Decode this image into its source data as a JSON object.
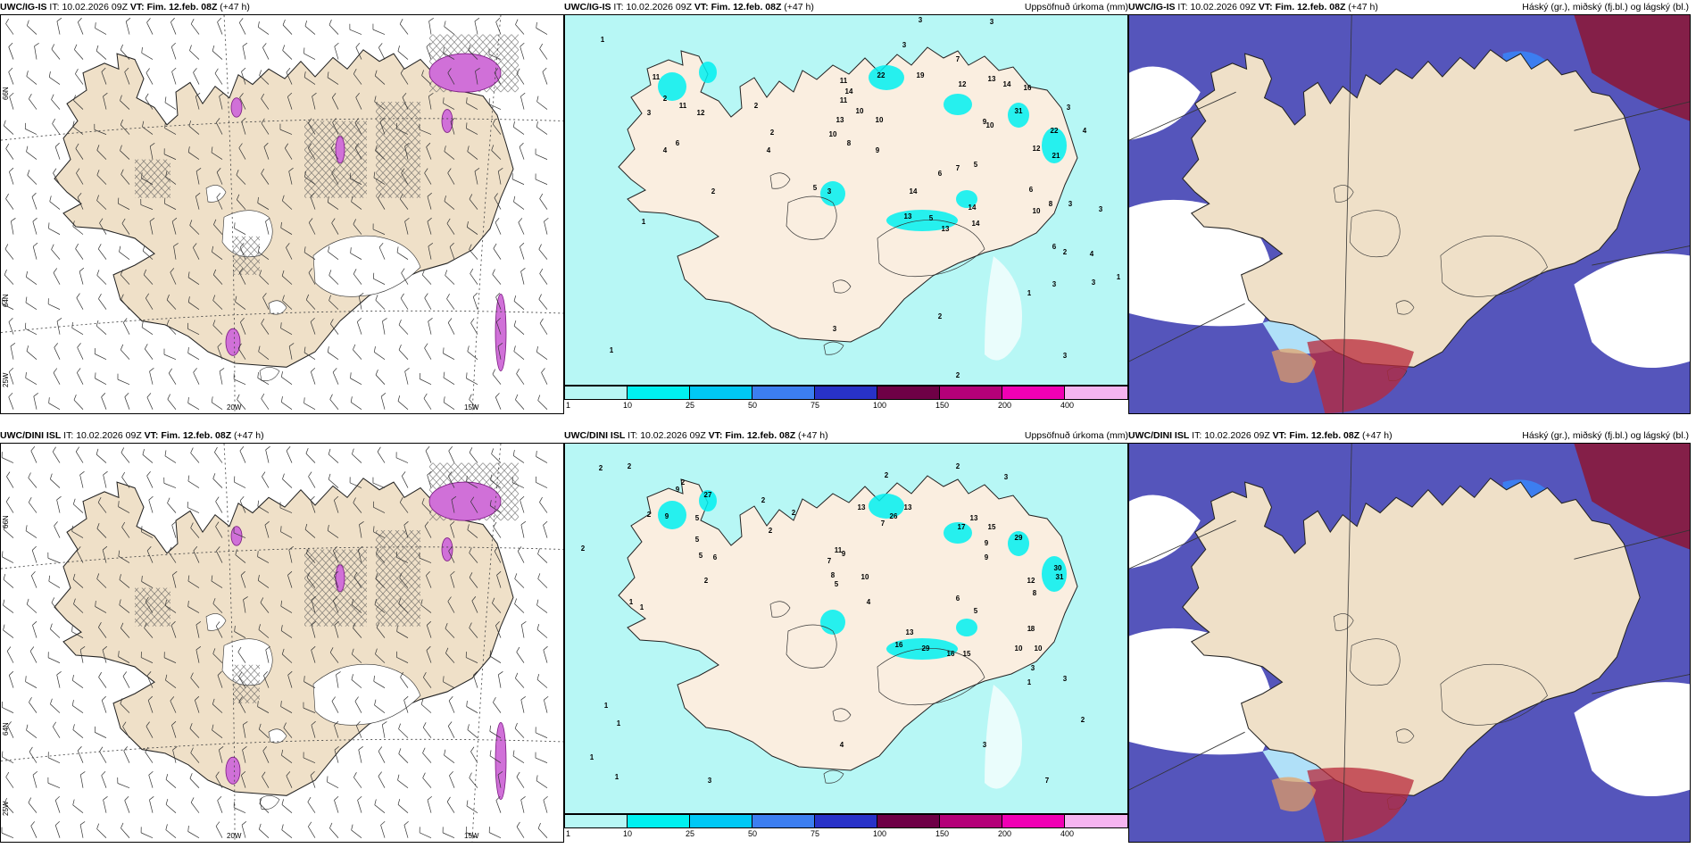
{
  "rows": [
    {
      "model": "UWC/IG-IS",
      "it_label": "IT:",
      "it_value": "10.02.2026 09Z",
      "vt_label": "VT:",
      "vt_value": "Fim. 12.feb. 08Z",
      "lead": "(+47 h)"
    },
    {
      "model": "UWC/DINI ISL",
      "it_label": "IT:",
      "it_value": "10.02.2026 09Z",
      "vt_label": "VT:",
      "vt_value": "Fim. 12.feb. 08Z",
      "lead": "(+47 h)"
    }
  ],
  "precip_label": "Uppsöfnuð úrkoma (mm)",
  "cloud_label": "Háský (gr.), miðský (fj.bl.) og lágský (bl.)",
  "colorbar": {
    "ticks": [
      "1",
      "10",
      "25",
      "50",
      "75",
      "100",
      "150",
      "200",
      "400"
    ],
    "colors": [
      "#b7f7f5",
      "#00f0f0",
      "#00c8f5",
      "#3c7ef0",
      "#2832c8",
      "#6e0046",
      "#b40078",
      "#f000b4",
      "#f5b4f0"
    ]
  },
  "axis_labels": {
    "lat66": "66N",
    "lat64": "64N",
    "lon25": "25W",
    "lon20": "20W",
    "lon15": "15W"
  },
  "colors": {
    "land": "#efe0c8",
    "land_light": "#faeee0",
    "precip_bg": "#b7f7f5",
    "precip_mid": "#00f0f0",
    "cloud_high": "#5555bb",
    "cloud_mid": "#3c7ef0",
    "cloud_low": "#b0e0f8",
    "hatch": "#555555",
    "purple": "#d070d8"
  },
  "precip_values": [
    [
      [
        "1",
        42,
        30
      ],
      [
        "3",
        398,
        8
      ],
      [
        "3",
        478,
        10
      ],
      [
        "3",
        380,
        36
      ],
      [
        "7",
        440,
        52
      ],
      [
        "22",
        354,
        70
      ],
      [
        "19",
        398,
        70
      ],
      [
        "12",
        445,
        80
      ],
      [
        "13",
        478,
        74
      ],
      [
        "14",
        495,
        80
      ],
      [
        "16",
        518,
        84
      ],
      [
        "11",
        312,
        76
      ],
      [
        "14",
        318,
        88
      ],
      [
        "11",
        312,
        98
      ],
      [
        "10",
        330,
        110
      ],
      [
        "13",
        308,
        120
      ],
      [
        "10",
        352,
        120
      ],
      [
        "8",
        318,
        146
      ],
      [
        "9",
        350,
        154
      ],
      [
        "10",
        300,
        136
      ],
      [
        "5",
        280,
        196
      ],
      [
        "3",
        296,
        200
      ],
      [
        "14",
        390,
        200
      ],
      [
        "5",
        410,
        230
      ],
      [
        "13",
        384,
        228
      ],
      [
        "13",
        426,
        242
      ],
      [
        "14",
        460,
        236
      ],
      [
        "14",
        456,
        218
      ],
      [
        "7",
        440,
        174
      ],
      [
        "6",
        420,
        180
      ],
      [
        "5",
        460,
        170
      ],
      [
        "9",
        470,
        122
      ],
      [
        "10",
        476,
        126
      ],
      [
        "31",
        508,
        110
      ],
      [
        "22",
        548,
        132
      ],
      [
        "21",
        550,
        160
      ],
      [
        "12",
        528,
        152
      ],
      [
        "6",
        522,
        198
      ],
      [
        "10",
        528,
        222
      ],
      [
        "8",
        544,
        214
      ],
      [
        "2",
        560,
        268
      ],
      [
        "3",
        548,
        304
      ],
      [
        "1",
        520,
        314
      ],
      [
        "3",
        560,
        384
      ],
      [
        "4",
        544,
        424
      ],
      [
        "2",
        440,
        406
      ],
      [
        "3",
        592,
        302
      ],
      [
        "3",
        600,
        220
      ],
      [
        "1",
        620,
        296
      ],
      [
        "4",
        590,
        270
      ],
      [
        "2",
        420,
        340
      ],
      [
        "1",
        52,
        378
      ],
      [
        "2",
        232,
        134
      ],
      [
        "2",
        214,
        104
      ],
      [
        "4",
        228,
        154
      ],
      [
        "11",
        102,
        72
      ],
      [
        "2",
        112,
        96
      ],
      [
        "3",
        94,
        112
      ],
      [
        "11",
        132,
        104
      ],
      [
        "12",
        152,
        112
      ],
      [
        "6",
        126,
        146
      ],
      [
        "2",
        166,
        200
      ],
      [
        "1",
        88,
        234
      ],
      [
        "4",
        112,
        154
      ],
      [
        "3",
        564,
        106
      ],
      [
        "4",
        582,
        132
      ],
      [
        "3",
        566,
        214
      ],
      [
        "6",
        548,
        262
      ],
      [
        "3",
        302,
        354
      ]
    ],
    [
      [
        "2",
        40,
        30
      ],
      [
        "2",
        72,
        28
      ],
      [
        "2",
        132,
        46
      ],
      [
        "2",
        222,
        66
      ],
      [
        "2",
        360,
        38
      ],
      [
        "2",
        440,
        28
      ],
      [
        "3",
        494,
        40
      ],
      [
        "13",
        384,
        74
      ],
      [
        "26",
        368,
        84
      ],
      [
        "13",
        332,
        74
      ],
      [
        "7",
        356,
        92
      ],
      [
        "2",
        256,
        80
      ],
      [
        "2",
        230,
        100
      ],
      [
        "17",
        444,
        96
      ],
      [
        "13",
        458,
        86
      ],
      [
        "15",
        478,
        96
      ],
      [
        "29",
        508,
        108
      ],
      [
        "30",
        552,
        142
      ],
      [
        "31",
        554,
        152
      ],
      [
        "12",
        522,
        156
      ],
      [
        "9",
        472,
        114
      ],
      [
        "9",
        472,
        130
      ],
      [
        "11",
        306,
        122
      ],
      [
        "9",
        312,
        126
      ],
      [
        "7",
        296,
        134
      ],
      [
        "8",
        300,
        150
      ],
      [
        "10",
        336,
        152
      ],
      [
        "5",
        304,
        160
      ],
      [
        "4",
        340,
        180
      ],
      [
        "13",
        386,
        214
      ],
      [
        "16",
        374,
        228
      ],
      [
        "29",
        404,
        232
      ],
      [
        "16",
        432,
        238
      ],
      [
        "15",
        450,
        238
      ],
      [
        "10",
        508,
        232
      ],
      [
        "10",
        530,
        232
      ],
      [
        "8",
        524,
        210
      ],
      [
        "6",
        440,
        176
      ],
      [
        "5",
        460,
        190
      ],
      [
        "8",
        526,
        170
      ],
      [
        "3",
        560,
        266
      ],
      [
        "3",
        524,
        254
      ],
      [
        "1",
        520,
        210
      ],
      [
        "2",
        580,
        312
      ],
      [
        "1",
        520,
        270
      ],
      [
        "3",
        470,
        340
      ],
      [
        "7",
        540,
        380
      ],
      [
        "9",
        126,
        54
      ],
      [
        "27",
        160,
        60
      ],
      [
        "2",
        94,
        82
      ],
      [
        "9",
        114,
        84
      ],
      [
        "5",
        148,
        86
      ],
      [
        "5",
        148,
        110
      ],
      [
        "5",
        152,
        128
      ],
      [
        "6",
        168,
        130
      ],
      [
        "2",
        158,
        156
      ],
      [
        "1",
        74,
        180
      ],
      [
        "1",
        86,
        186
      ],
      [
        "2",
        20,
        120
      ],
      [
        "1",
        46,
        296
      ],
      [
        "1",
        60,
        316
      ],
      [
        "1",
        30,
        354
      ],
      [
        "1",
        58,
        376
      ],
      [
        "4",
        310,
        340
      ],
      [
        "3",
        162,
        380
      ]
    ]
  ]
}
